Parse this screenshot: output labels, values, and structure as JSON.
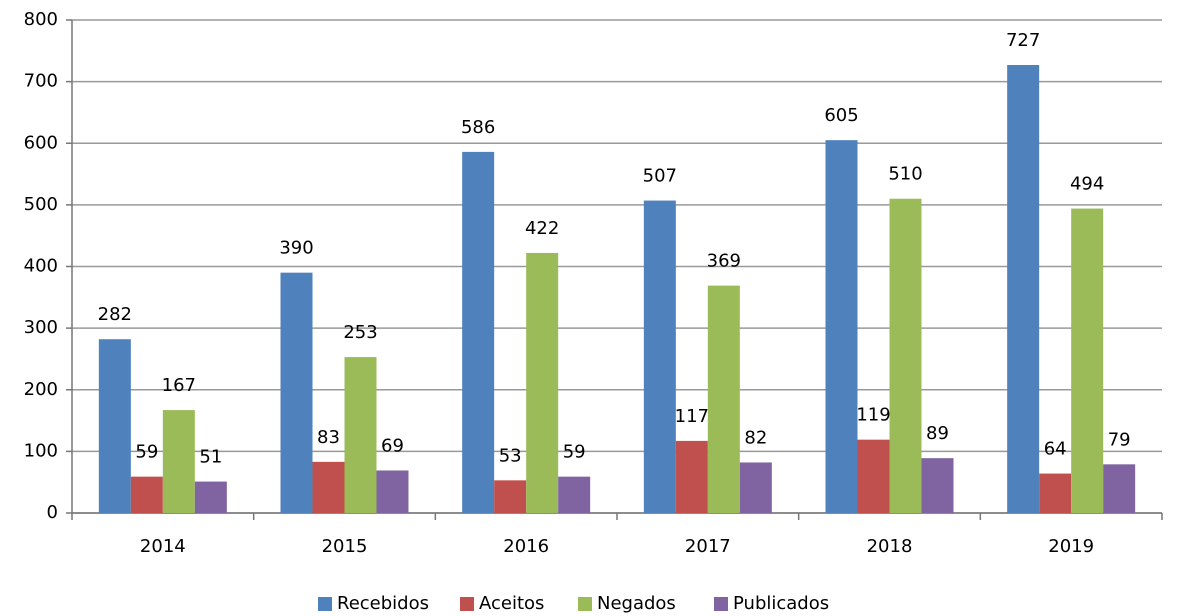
{
  "chart_data": {
    "type": "bar",
    "categories": [
      "2014",
      "2015",
      "2016",
      "2017",
      "2018",
      "2019"
    ],
    "series": [
      {
        "name": "Recebidos",
        "color": "#4f81bd",
        "values": [
          282,
          390,
          586,
          507,
          605,
          727
        ]
      },
      {
        "name": "Aceitos",
        "color": "#c0504d",
        "values": [
          59,
          83,
          53,
          117,
          119,
          64
        ]
      },
      {
        "name": "Negados",
        "color": "#9bbb59",
        "values": [
          167,
          253,
          422,
          369,
          510,
          494
        ]
      },
      {
        "name": "Publicados",
        "color": "#8064a2",
        "values": [
          51,
          69,
          59,
          82,
          89,
          79
        ]
      }
    ],
    "ylim": [
      0,
      800
    ],
    "yticks": [
      0,
      100,
      200,
      300,
      400,
      500,
      600,
      700,
      800
    ],
    "grid": true,
    "legend": "bottom"
  }
}
